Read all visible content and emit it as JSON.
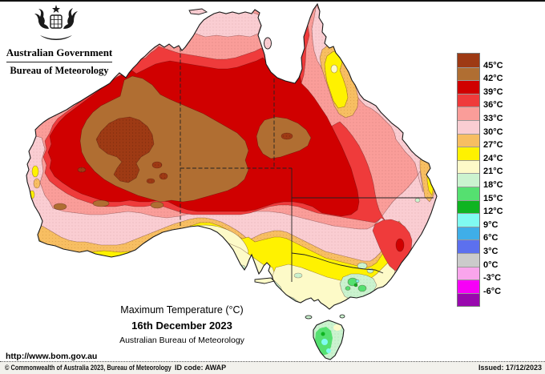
{
  "header": {
    "gov": "Australian Government",
    "bom": "Bureau of Meteorology"
  },
  "titles": {
    "main": "Maximum Temperature (°C)",
    "date": "16th December 2023",
    "org": "Australian Bureau of Meteorology"
  },
  "url": "http://www.bom.gov.au",
  "footer": {
    "copyright": "© Commonwealth of Australia 2023, Bureau of Meteorology",
    "id_code": "ID code: AWAP",
    "issued": "Issued: 17/12/2023"
  },
  "legend": {
    "labels": [
      "45°C",
      "42°C",
      "39°C",
      "36°C",
      "33°C",
      "30°C",
      "27°C",
      "24°C",
      "21°C",
      "18°C",
      "15°C",
      "12°C",
      "9°C",
      "6°C",
      "3°C",
      "0°C",
      "-3°C",
      "-6°C"
    ],
    "colors": [
      "#9E3A14",
      "#B06E32",
      "#D00000",
      "#EF3B3B",
      "#FA9D99",
      "#FACDD2",
      "#F7BE62",
      "#FFF200",
      "#FDFAC8",
      "#CBF3CF",
      "#55E070",
      "#0FB421",
      "#80FBF1",
      "#3FAEE8",
      "#5C70EE",
      "#CBCBCB",
      "#F9A5EC",
      "#F700F7",
      "#9908AE"
    ]
  },
  "palette": {
    "t45plus": "#9E3A14",
    "t42": "#B06E32",
    "t39": "#D00000",
    "t36": "#EF3B3B",
    "t33": "#FA9D99",
    "t30": "#FACDD2",
    "t27": "#F7BE62",
    "t24": "#FFF200",
    "t21": "#FDFAC8",
    "t18": "#CBF3CF",
    "t15": "#55E070",
    "t12": "#0FB421",
    "t9": "#80FBF1",
    "t6": "#3FAEE8",
    "t3": "#5C70EE",
    "coast": "#1a1a1a",
    "contour": "#5a1010",
    "border": "#222222"
  },
  "map": {
    "description": "Maximum temperature analysis map of Australia"
  }
}
